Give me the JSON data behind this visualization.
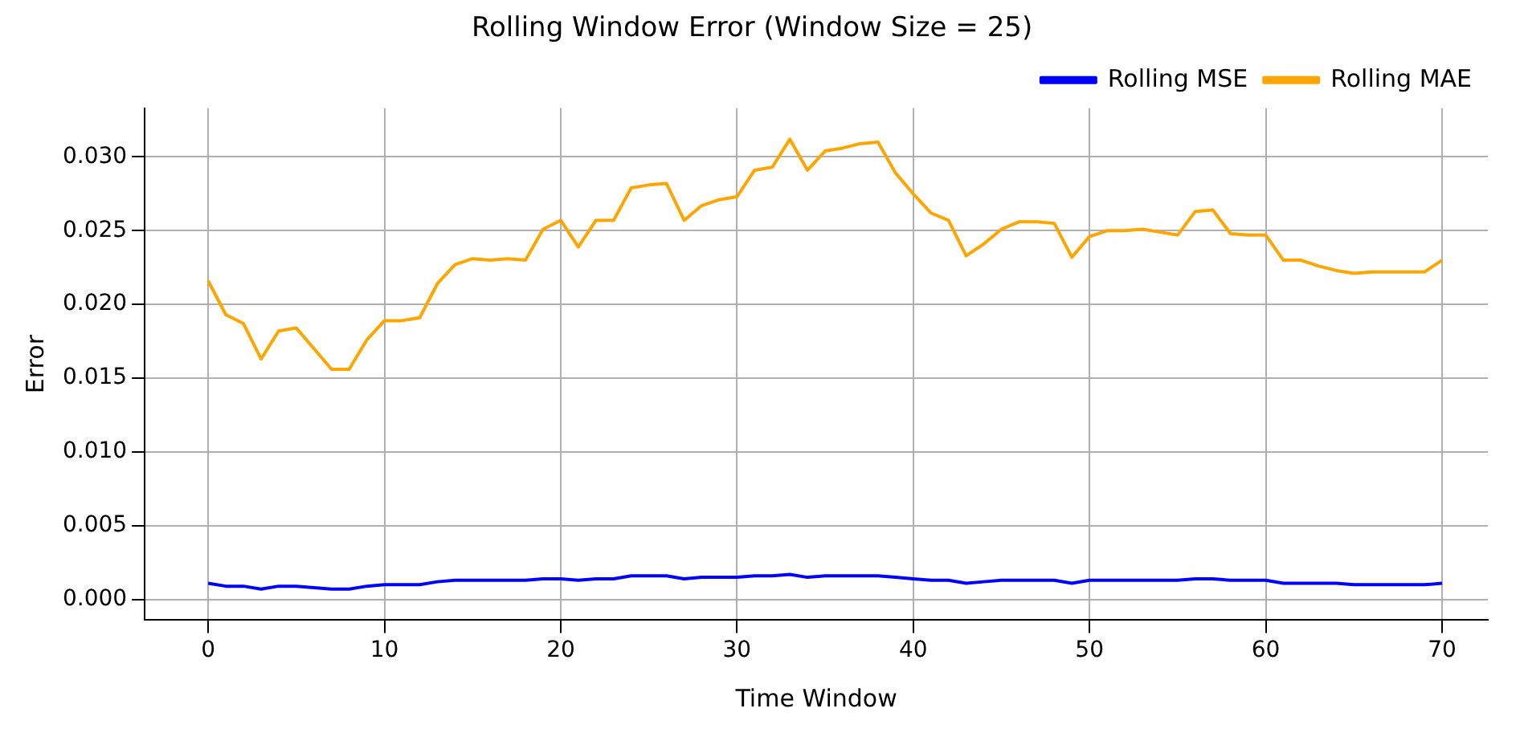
{
  "chart_data": {
    "type": "line",
    "title": "Rolling Window Error (Window Size = 25)",
    "xlabel": "Time Window",
    "ylabel": "Error",
    "x": [
      0,
      1,
      2,
      3,
      4,
      5,
      6,
      7,
      8,
      9,
      10,
      11,
      12,
      13,
      14,
      15,
      16,
      17,
      18,
      19,
      20,
      21,
      22,
      23,
      24,
      25,
      26,
      27,
      28,
      29,
      30,
      31,
      32,
      33,
      34,
      35,
      36,
      37,
      38,
      39,
      40,
      41,
      42,
      43,
      44,
      45,
      46,
      47,
      48,
      49,
      50,
      51,
      52,
      53,
      54,
      55,
      56,
      57,
      58,
      59,
      60,
      61,
      62,
      63,
      64,
      65,
      66,
      67,
      68,
      69,
      70
    ],
    "series": [
      {
        "name": "Rolling MSE",
        "color": "#0000ff",
        "values": [
          0.0011,
          0.0009,
          0.0009,
          0.0007,
          0.0009,
          0.0009,
          0.0008,
          0.0007,
          0.0007,
          0.0009,
          0.001,
          0.001,
          0.001,
          0.0012,
          0.0013,
          0.0013,
          0.0013,
          0.0013,
          0.0013,
          0.0014,
          0.0014,
          0.0013,
          0.0014,
          0.0014,
          0.0016,
          0.0016,
          0.0016,
          0.0014,
          0.0015,
          0.0015,
          0.0015,
          0.0016,
          0.0016,
          0.0017,
          0.0015,
          0.0016,
          0.0016,
          0.0016,
          0.0016,
          0.0015,
          0.0014,
          0.0013,
          0.0013,
          0.0011,
          0.0012,
          0.0013,
          0.0013,
          0.0013,
          0.0013,
          0.0011,
          0.0013,
          0.0013,
          0.0013,
          0.0013,
          0.0013,
          0.0013,
          0.0014,
          0.0014,
          0.0013,
          0.0013,
          0.0013,
          0.0011,
          0.0011,
          0.0011,
          0.0011,
          0.001,
          0.001,
          0.001,
          0.001,
          0.001,
          0.0011
        ]
      },
      {
        "name": "Rolling MAE",
        "color": "#ffa500",
        "values": [
          0.0216,
          0.0193,
          0.0187,
          0.0163,
          0.0182,
          0.0184,
          0.017,
          0.0156,
          0.0156,
          0.0176,
          0.0189,
          0.0189,
          0.0191,
          0.0214,
          0.0227,
          0.0231,
          0.023,
          0.0231,
          0.023,
          0.0251,
          0.0257,
          0.0239,
          0.0257,
          0.0257,
          0.0279,
          0.0281,
          0.0282,
          0.0257,
          0.0267,
          0.0271,
          0.0273,
          0.0291,
          0.0293,
          0.0312,
          0.0291,
          0.0304,
          0.0306,
          0.0309,
          0.031,
          0.0289,
          0.0275,
          0.0262,
          0.0257,
          0.0233,
          0.0241,
          0.0251,
          0.0256,
          0.0256,
          0.0255,
          0.0232,
          0.0246,
          0.025,
          0.025,
          0.0251,
          0.0249,
          0.0247,
          0.0263,
          0.0264,
          0.0248,
          0.0247,
          0.0247,
          0.023,
          0.023,
          0.0226,
          0.0223,
          0.0221,
          0.0222,
          0.0222,
          0.0222,
          0.0222,
          0.023
        ]
      }
    ],
    "xlim": [
      -3.6,
      72.6
    ],
    "ylim": [
      -0.0014,
      0.0333
    ],
    "xticks": [
      0,
      10,
      20,
      30,
      40,
      50,
      60,
      70
    ],
    "yticks": [
      {
        "value": 0,
        "label": "0.000"
      },
      {
        "value": 0.005,
        "label": "0.005"
      },
      {
        "value": 0.01,
        "label": "0.010"
      },
      {
        "value": 0.015,
        "label": "0.015"
      },
      {
        "value": 0.02,
        "label": "0.020"
      },
      {
        "value": 0.025,
        "label": "0.025"
      },
      {
        "value": 0.03,
        "label": "0.030"
      }
    ],
    "grid": true,
    "legend": "top right",
    "marker": "none",
    "line_style": "solid"
  }
}
